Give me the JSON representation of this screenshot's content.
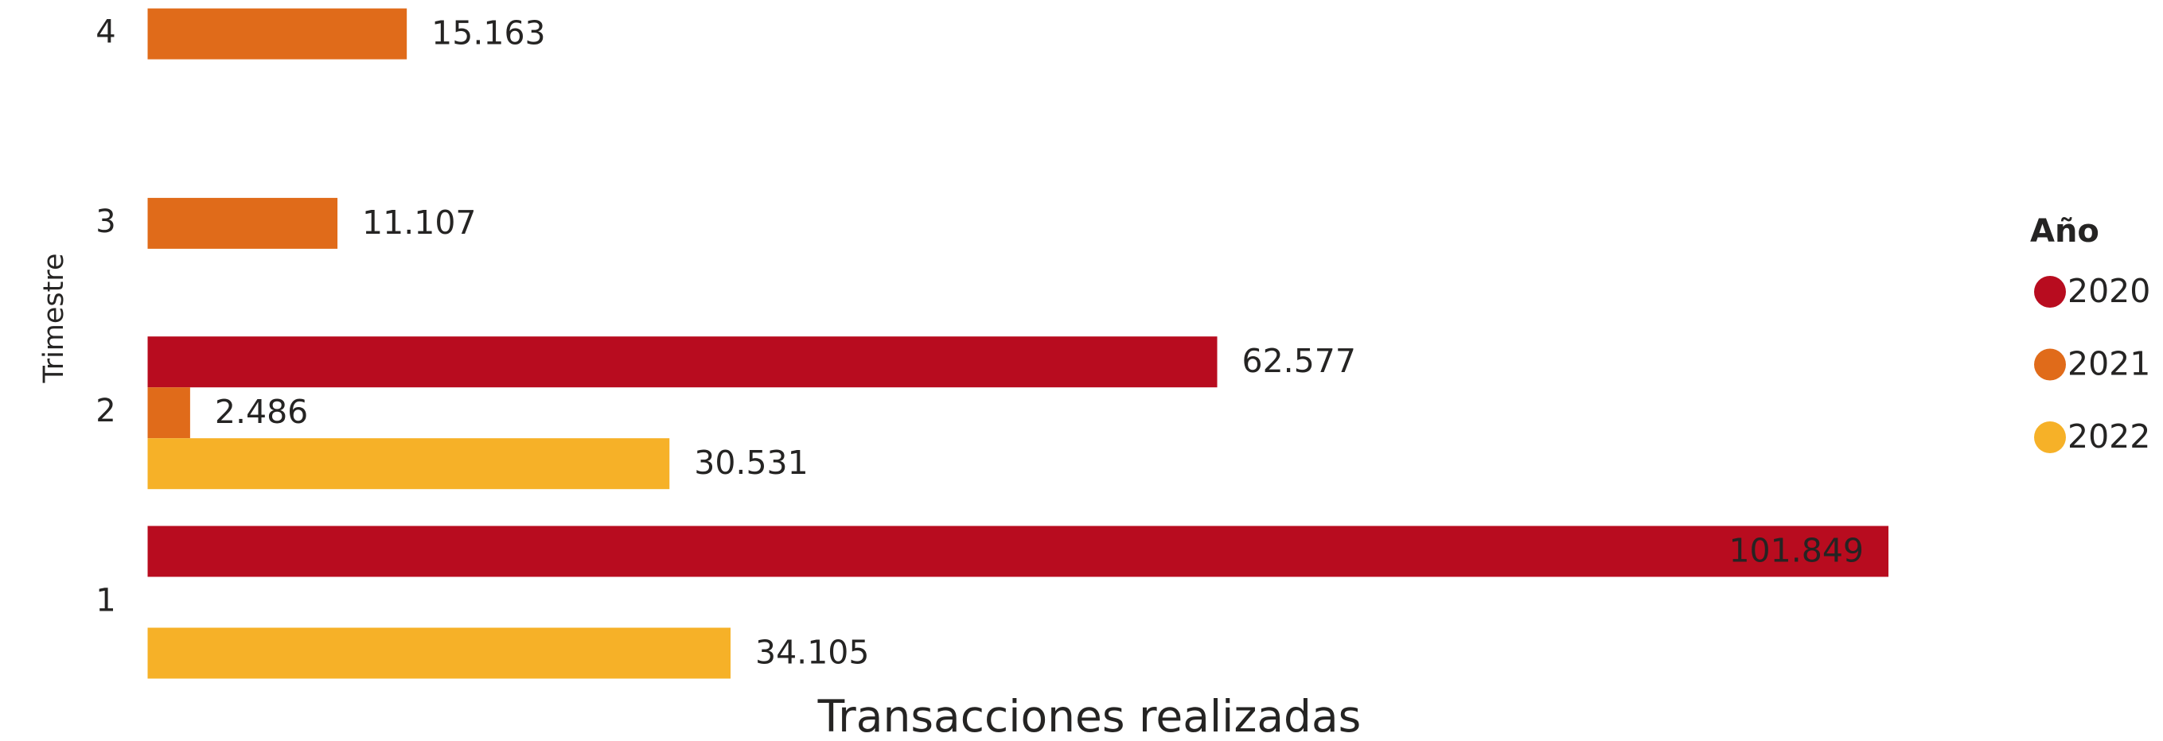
{
  "chart_data": {
    "type": "hbar",
    "x_label": "Transacciones realizadas",
    "y_label": "Trimestre",
    "legend_title": "Año",
    "legend": "right",
    "categories": [
      "1",
      "2",
      "3",
      "4"
    ],
    "series": [
      {
        "name": "2020",
        "color": "#b80c1f",
        "values": [
          101849,
          62577,
          null,
          null
        ],
        "value_labels": [
          "101.849",
          "62.577",
          null,
          null
        ]
      },
      {
        "name": "2021",
        "color": "#e06b1a",
        "values": [
          null,
          2486,
          11107,
          15163
        ],
        "value_labels": [
          null,
          "2.486",
          "11.107",
          "15.163"
        ]
      },
      {
        "name": "2022",
        "color": "#f6b128",
        "values": [
          34105,
          30531,
          null,
          null
        ],
        "value_labels": [
          "34.105",
          "30.531",
          null,
          null
        ]
      }
    ]
  }
}
